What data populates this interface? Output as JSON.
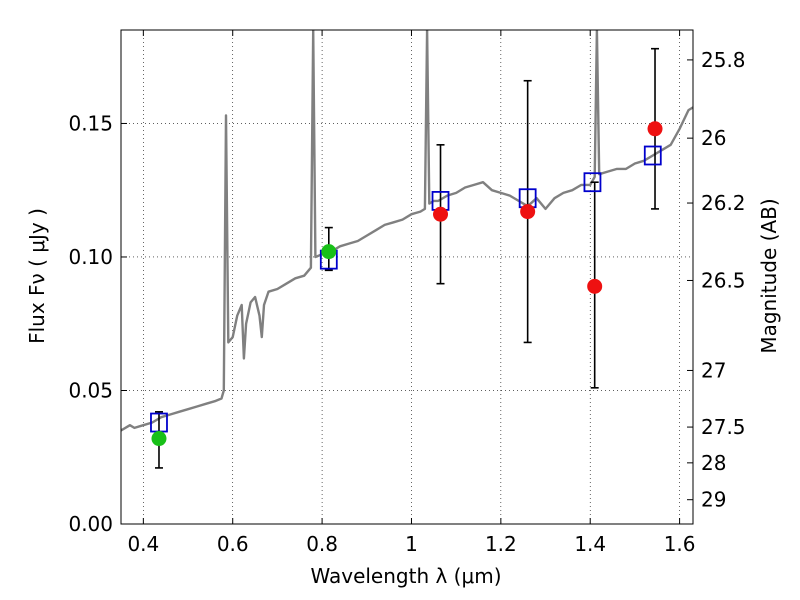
{
  "chart_data": {
    "type": "scatter",
    "title": "",
    "xlabel": "Wavelength  λ (μm)",
    "ylabel": "Flux  Fν  ( μJy )",
    "ylabel_right": "Magnitude (AB)",
    "xlim": [
      0.35,
      1.63
    ],
    "ylim": [
      0.0,
      0.185
    ],
    "grid": true,
    "x_ticks": [
      0.4,
      0.6,
      0.8,
      1.0,
      1.2,
      1.4,
      1.6
    ],
    "x_tick_labels": [
      "0.4",
      "0.6",
      "0.8",
      "1",
      "1.2",
      "1.4",
      "1.6"
    ],
    "y_ticks": [
      0.0,
      0.05,
      0.1,
      0.15
    ],
    "y_tick_labels": [
      "0.00",
      "0.05",
      "0.10",
      "0.15"
    ],
    "right_ticks": [
      {
        "flux": 0.1738,
        "label": "25.8"
      },
      {
        "flux": 0.1445,
        "label": "26"
      },
      {
        "flux": 0.1202,
        "label": "26.2"
      },
      {
        "flux": 0.0912,
        "label": "26.5"
      },
      {
        "flux": 0.0575,
        "label": "27"
      },
      {
        "flux": 0.0363,
        "label": "27.5"
      },
      {
        "flux": 0.0229,
        "label": "28"
      },
      {
        "flux": 0.0091,
        "label": "29"
      }
    ],
    "colors": {
      "model": "#808080",
      "green": "#18c018",
      "red": "#ee1111",
      "box": "#0000cc",
      "errorbar": "#000000"
    },
    "series": [
      {
        "name": "model spectrum",
        "type": "line",
        "points": [
          [
            0.35,
            0.035
          ],
          [
            0.37,
            0.037
          ],
          [
            0.38,
            0.036
          ],
          [
            0.4,
            0.037
          ],
          [
            0.42,
            0.038
          ],
          [
            0.44,
            0.04
          ],
          [
            0.46,
            0.041
          ],
          [
            0.48,
            0.042
          ],
          [
            0.5,
            0.043
          ],
          [
            0.52,
            0.044
          ],
          [
            0.54,
            0.045
          ],
          [
            0.56,
            0.046
          ],
          [
            0.575,
            0.047
          ],
          [
            0.58,
            0.05
          ],
          [
            0.585,
            0.153
          ],
          [
            0.59,
            0.068
          ],
          [
            0.6,
            0.07
          ],
          [
            0.61,
            0.078
          ],
          [
            0.62,
            0.082
          ],
          [
            0.625,
            0.062
          ],
          [
            0.63,
            0.075
          ],
          [
            0.64,
            0.083
          ],
          [
            0.65,
            0.085
          ],
          [
            0.66,
            0.078
          ],
          [
            0.665,
            0.07
          ],
          [
            0.67,
            0.082
          ],
          [
            0.68,
            0.087
          ],
          [
            0.7,
            0.088
          ],
          [
            0.72,
            0.09
          ],
          [
            0.74,
            0.092
          ],
          [
            0.76,
            0.093
          ],
          [
            0.775,
            0.096
          ],
          [
            0.78,
            0.185
          ],
          [
            0.785,
            0.1
          ],
          [
            0.8,
            0.101
          ],
          [
            0.82,
            0.102
          ],
          [
            0.84,
            0.104
          ],
          [
            0.86,
            0.105
          ],
          [
            0.88,
            0.106
          ],
          [
            0.9,
            0.108
          ],
          [
            0.92,
            0.11
          ],
          [
            0.94,
            0.112
          ],
          [
            0.96,
            0.113
          ],
          [
            0.98,
            0.114
          ],
          [
            1.0,
            0.116
          ],
          [
            1.02,
            0.117
          ],
          [
            1.03,
            0.118
          ],
          [
            1.035,
            0.185
          ],
          [
            1.04,
            0.12
          ],
          [
            1.05,
            0.121
          ],
          [
            1.06,
            0.121
          ],
          [
            1.08,
            0.123
          ],
          [
            1.1,
            0.124
          ],
          [
            1.12,
            0.126
          ],
          [
            1.14,
            0.127
          ],
          [
            1.16,
            0.128
          ],
          [
            1.18,
            0.125
          ],
          [
            1.2,
            0.124
          ],
          [
            1.22,
            0.123
          ],
          [
            1.24,
            0.121
          ],
          [
            1.26,
            0.119
          ],
          [
            1.28,
            0.122
          ],
          [
            1.3,
            0.118
          ],
          [
            1.32,
            0.122
          ],
          [
            1.34,
            0.124
          ],
          [
            1.36,
            0.125
          ],
          [
            1.38,
            0.127
          ],
          [
            1.4,
            0.127
          ],
          [
            1.41,
            0.13
          ],
          [
            1.415,
            0.185
          ],
          [
            1.42,
            0.131
          ],
          [
            1.44,
            0.132
          ],
          [
            1.46,
            0.133
          ],
          [
            1.48,
            0.133
          ],
          [
            1.5,
            0.135
          ],
          [
            1.52,
            0.136
          ],
          [
            1.54,
            0.138
          ],
          [
            1.56,
            0.14
          ],
          [
            1.58,
            0.142
          ],
          [
            1.6,
            0.148
          ],
          [
            1.62,
            0.155
          ],
          [
            1.63,
            0.156
          ]
        ]
      },
      {
        "name": "observed (green)",
        "type": "scatter",
        "points": [
          {
            "x": 0.435,
            "y": 0.032,
            "err_lo": 0.021,
            "err_hi": 0.042
          },
          {
            "x": 0.815,
            "y": 0.102,
            "err_lo": 0.095,
            "err_hi": 0.111
          }
        ]
      },
      {
        "name": "observed (red)",
        "type": "scatter",
        "points": [
          {
            "x": 1.065,
            "y": 0.116,
            "err_lo": 0.09,
            "err_hi": 0.142
          },
          {
            "x": 1.26,
            "y": 0.117,
            "err_lo": 0.068,
            "err_hi": 0.166
          },
          {
            "x": 1.41,
            "y": 0.089,
            "err_lo": 0.051,
            "err_hi": 0.128
          },
          {
            "x": 1.545,
            "y": 0.148,
            "err_lo": 0.118,
            "err_hi": 0.178
          }
        ]
      },
      {
        "name": "model photometry",
        "type": "scatter",
        "marker": "square",
        "points": [
          {
            "x": 0.435,
            "y": 0.038
          },
          {
            "x": 0.815,
            "y": 0.099
          },
          {
            "x": 1.065,
            "y": 0.121
          },
          {
            "x": 1.26,
            "y": 0.122
          },
          {
            "x": 1.405,
            "y": 0.128
          },
          {
            "x": 1.54,
            "y": 0.138
          }
        ]
      }
    ]
  }
}
